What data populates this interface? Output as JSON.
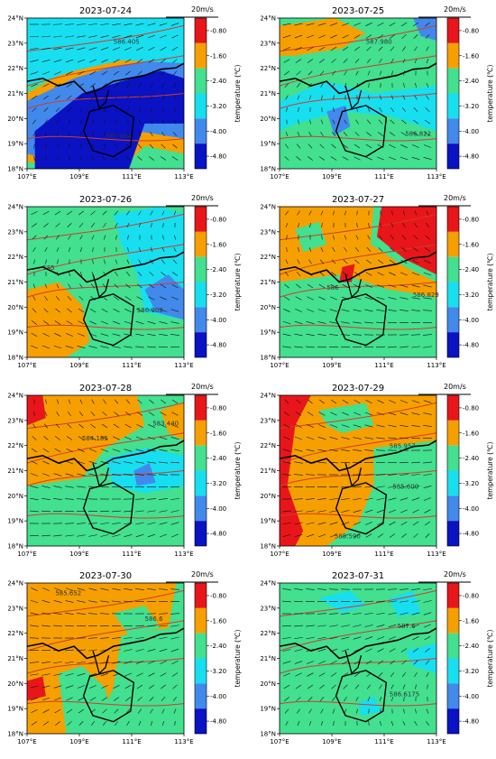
{
  "figure": {
    "colorbar_label": "temperature (℃)",
    "colorbar_ticks": [
      "-0.80",
      "-1.60",
      "-2.40",
      "-3.20",
      "-4.00",
      "-4.80"
    ],
    "colorbar_colors": [
      "#e8161a",
      "#f5a000",
      "#42e08f",
      "#17dff0",
      "#4289ec",
      "#0a12c4"
    ],
    "vector_scale_label": "20m/s",
    "xticks": [
      "107°E",
      "109°E",
      "111°E",
      "113°E"
    ],
    "yticks": [
      "18°N",
      "19°N",
      "20°N",
      "21°N",
      "22°N",
      "23°N",
      "24°N"
    ]
  },
  "chart_data": [
    {
      "type": "heatmap",
      "title": "2023-07-24",
      "contour_labels": [
        "586.405",
        "587.904"
      ],
      "dominant_temperature_change": "-4.80 to -3.20"
    },
    {
      "type": "heatmap",
      "title": "2023-07-25",
      "contour_labels": [
        "587.980",
        "586.822"
      ],
      "dominant_temperature_change": "-2.40 to -1.60"
    },
    {
      "type": "heatmap",
      "title": "2023-07-26",
      "contour_labels": [
        "585",
        "586.909"
      ],
      "dominant_temperature_change": "-2.40 to -1.60"
    },
    {
      "type": "heatmap",
      "title": "2023-07-27",
      "contour_labels": [
        "586",
        "586.829"
      ],
      "dominant_temperature_change": "-2.40 to -0.80"
    },
    {
      "type": "heatmap",
      "title": "2023-07-28",
      "contour_labels": [
        "584.185",
        "583.440"
      ],
      "dominant_temperature_change": "-2.40 to -1.60"
    },
    {
      "type": "heatmap",
      "title": "2023-07-29",
      "contour_labels": [
        "585.957",
        "585.600",
        "585.590"
      ],
      "dominant_temperature_change": "-2.40 to -0.80"
    },
    {
      "type": "heatmap",
      "title": "2023-07-30",
      "contour_labels": [
        "585.652",
        "586.6"
      ],
      "dominant_temperature_change": "-2.40 to -1.60"
    },
    {
      "type": "heatmap",
      "title": "2023-07-31",
      "contour_labels": [
        "587.6",
        "586.6175"
      ],
      "dominant_temperature_change": "-3.20 to -1.60"
    }
  ]
}
